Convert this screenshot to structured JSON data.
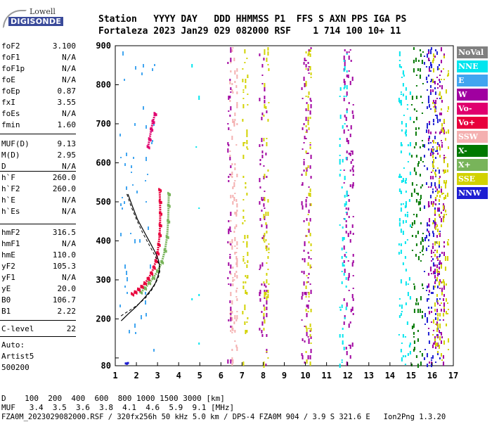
{
  "logo": {
    "top": "Lowell",
    "main": "DIGISONDE"
  },
  "header": {
    "line1": "Station   YYYY DAY   DDD HHMMSS P1  FFS S AXN PPS IGA PS",
    "line2": "Fortaleza 2023 Jan29 029 082000 RSF    1 714 100 10+ 11"
  },
  "params": [
    {
      "key": "foF2",
      "value": "3.100"
    },
    {
      "key": "foF1",
      "value": "N/A"
    },
    {
      "key": "foF1p",
      "value": "N/A"
    },
    {
      "key": "foE",
      "value": "N/A"
    },
    {
      "key": "foEp",
      "value": "0.87"
    },
    {
      "key": "fxI",
      "value": "3.55"
    },
    {
      "key": "foEs",
      "value": "N/A"
    },
    {
      "key": "fmin",
      "value": "1.60"
    },
    {
      "key": "MUF(D)",
      "value": "9.13"
    },
    {
      "key": "M(D)",
      "value": "2.95"
    },
    {
      "key": "D",
      "value": "N/A"
    },
    {
      "key": "h`F",
      "value": "260.0"
    },
    {
      "key": "h`F2",
      "value": "260.0"
    },
    {
      "key": "h`E",
      "value": "N/A"
    },
    {
      "key": "h`Es",
      "value": "N/A"
    },
    {
      "key": "hmF2",
      "value": "316.5"
    },
    {
      "key": "hmF1",
      "value": "N/A"
    },
    {
      "key": "hmE",
      "value": "110.0"
    },
    {
      "key": "yF2",
      "value": "105.3"
    },
    {
      "key": "yF1",
      "value": "N/A"
    },
    {
      "key": "yE",
      "value": "20.0"
    },
    {
      "key": "B0",
      "value": "106.7"
    },
    {
      "key": "B1",
      "value": "2.22"
    },
    {
      "key": "C-level",
      "value": "22"
    }
  ],
  "auto": {
    "line1": "Auto:",
    "line2": "Artist5",
    "line3": "500200"
  },
  "legend": [
    {
      "label": "NoVal",
      "color": "#808080"
    },
    {
      "label": "NNE",
      "color": "#00e5ee"
    },
    {
      "label": "E",
      "color": "#41a5f0"
    },
    {
      "label": "W",
      "color": "#a000a0"
    },
    {
      "label": "Vo-",
      "color": "#e0006e"
    },
    {
      "label": "Vo+",
      "color": "#e8003c"
    },
    {
      "label": "SSW",
      "color": "#f4b0b0"
    },
    {
      "label": "X-",
      "color": "#007800"
    },
    {
      "label": "X+",
      "color": "#78b45a"
    },
    {
      "label": "SSE",
      "color": "#d2d200"
    },
    {
      "label": "NNW",
      "color": "#1e1ed2"
    }
  ],
  "footer": {
    "d_line": "D    100  200  400  600  800 1000 1500 3000 [km]",
    "muf_line": "MUF   3.4  3.5  3.6  3.8  4.1  4.6  5.9  9.1 [MHz]",
    "file_line": "FZA0M_2023029082000.RSF / 320fx256h 50 kHz 5.0 km / DPS-4 FZA0M 904 / 3.9 S 321.6 E   Ion2Png 1.3.20"
  },
  "chart_data": {
    "type": "scatter",
    "title": "",
    "xlabel": "",
    "ylabel": "",
    "xlim": [
      1,
      17
    ],
    "ylim": [
      80,
      900
    ],
    "xticks": [
      1,
      2,
      3,
      4,
      5,
      6,
      7,
      8,
      9,
      10,
      11,
      12,
      13,
      14,
      15,
      16,
      17
    ],
    "yticks": [
      80,
      100,
      200,
      300,
      400,
      500,
      600,
      700,
      800,
      900
    ],
    "trace_o": {
      "name": "O-trace",
      "color": "#e8003c",
      "points": [
        [
          1.8,
          263
        ],
        [
          1.95,
          268
        ],
        [
          2.1,
          275
        ],
        [
          2.25,
          282
        ],
        [
          2.4,
          291
        ],
        [
          2.55,
          302
        ],
        [
          2.7,
          316
        ],
        [
          2.82,
          331
        ],
        [
          2.92,
          348
        ],
        [
          3.0,
          368
        ],
        [
          3.05,
          390
        ],
        [
          3.1,
          415
        ],
        [
          3.12,
          440
        ],
        [
          3.13,
          470
        ],
        [
          3.12,
          500
        ],
        [
          3.1,
          530
        ]
      ]
    },
    "trace_x": {
      "name": "X-trace",
      "color": "#78b45a",
      "points": [
        [
          2.2,
          268
        ],
        [
          2.4,
          278
        ],
        [
          2.6,
          292
        ],
        [
          2.8,
          305
        ],
        [
          3.0,
          322
        ],
        [
          3.2,
          345
        ],
        [
          3.35,
          375
        ],
        [
          3.45,
          410
        ],
        [
          3.5,
          450
        ],
        [
          3.52,
          490
        ],
        [
          3.53,
          520
        ]
      ]
    },
    "trace_ext": {
      "name": "extension",
      "color": "#e0006e",
      "points": [
        [
          2.55,
          640
        ],
        [
          2.62,
          660
        ],
        [
          2.7,
          685
        ],
        [
          2.78,
          705
        ],
        [
          2.88,
          725
        ]
      ]
    },
    "profile_solid": {
      "name": "profile",
      "points": [
        [
          1.28,
          195
        ],
        [
          1.6,
          212
        ],
        [
          2.0,
          232
        ],
        [
          2.4,
          255
        ],
        [
          2.7,
          275
        ],
        [
          2.9,
          292
        ],
        [
          3.02,
          310
        ],
        [
          3.08,
          322
        ],
        [
          3.1,
          335
        ],
        [
          3.05,
          350
        ],
        [
          2.9,
          370
        ],
        [
          2.65,
          395
        ],
        [
          2.35,
          425
        ],
        [
          2.05,
          455
        ],
        [
          1.8,
          490
        ],
        [
          1.6,
          520
        ]
      ]
    },
    "profile_dashed": {
      "name": "topside",
      "points": [
        [
          1.55,
          520
        ],
        [
          1.75,
          488
        ],
        [
          2.0,
          455
        ],
        [
          2.3,
          420
        ],
        [
          2.6,
          390
        ],
        [
          2.85,
          365
        ],
        [
          3.05,
          343
        ],
        [
          3.12,
          325
        ],
        [
          3.05,
          308
        ],
        [
          2.9,
          290
        ],
        [
          2.7,
          272
        ],
        [
          2.45,
          255
        ],
        [
          2.15,
          240
        ],
        [
          1.8,
          226
        ],
        [
          1.45,
          214
        ],
        [
          1.2,
          205
        ]
      ]
    },
    "noise_bands": [
      {
        "x": [
          6.4,
          6.8
        ],
        "color": "#f4b0b0",
        "density": 0.55
      },
      {
        "x": [
          6.3,
          6.5
        ],
        "color": "#a000a0",
        "density": 0.35
      },
      {
        "x": [
          7.0,
          7.3
        ],
        "color": "#d2d200",
        "density": 0.35
      },
      {
        "x": [
          7.8,
          8.2
        ],
        "color": "#a000a0",
        "density": 0.3
      },
      {
        "x": [
          8.0,
          8.3
        ],
        "color": "#d2d200",
        "density": 0.35
      },
      {
        "x": [
          9.8,
          10.3
        ],
        "color": "#a000a0",
        "density": 0.4
      },
      {
        "x": [
          10.0,
          10.3
        ],
        "color": "#d2d200",
        "density": 0.35
      },
      {
        "x": [
          11.8,
          12.3
        ],
        "color": "#a000a0",
        "density": 0.3
      },
      {
        "x": [
          11.6,
          12.0
        ],
        "color": "#00e5ee",
        "density": 0.3
      },
      {
        "x": [
          14.4,
          15.0
        ],
        "color": "#00e5ee",
        "density": 0.35
      },
      {
        "x": [
          15.0,
          15.6
        ],
        "color": "#007800",
        "density": 0.35
      },
      {
        "x": [
          15.6,
          16.4
        ],
        "color": "#1e1ed2",
        "density": 0.35
      },
      {
        "x": [
          15.8,
          16.6
        ],
        "color": "#a000a0",
        "density": 0.35
      },
      {
        "x": [
          16.0,
          16.8
        ],
        "color": "#d2d200",
        "density": 0.35
      },
      {
        "x": [
          1.2,
          2.9
        ],
        "color": "#41a5f0",
        "density": 0.06
      },
      {
        "x": [
          4.5,
          5.0
        ],
        "color": "#00e5ee",
        "density": 0.03
      }
    ]
  }
}
